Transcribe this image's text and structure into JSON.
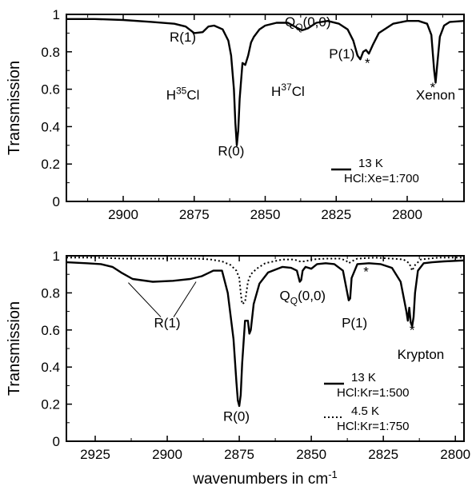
{
  "chart_data": [
    {
      "type": "line",
      "panel": "top",
      "ylabel": "Transmission",
      "xlabel": "",
      "xlim": [
        2920,
        2780
      ],
      "x_reversed": true,
      "ylim": [
        0,
        1
      ],
      "xticks": [
        2900,
        2875,
        2850,
        2825,
        2800
      ],
      "yticks": [
        0,
        0.2,
        0.4,
        0.6,
        0.8,
        1
      ],
      "grid": false,
      "legend_position": "bottom-right",
      "annotations": [
        {
          "text": "R(1)",
          "x": 2879,
          "y": 0.855
        },
        {
          "text": "Q",
          "sub": "Q",
          "suffix": "(0,0)",
          "x": 2835,
          "y": 0.935
        },
        {
          "text": "P(1)",
          "x": 2823,
          "y": 0.765
        },
        {
          "text": "H",
          "sup": "35",
          "suffix": "Cl",
          "x": 2879,
          "y": 0.545
        },
        {
          "text": "H",
          "sup": "37",
          "suffix": "Cl",
          "x": 2842,
          "y": 0.565
        },
        {
          "text": "R(0)",
          "x": 2862,
          "y": 0.245
        },
        {
          "text": "Xenon",
          "x": 2790,
          "y": 0.545
        },
        {
          "text": "*",
          "x": 2814,
          "y": 0.715
        },
        {
          "text": "*",
          "x": 2791,
          "y": 0.585
        }
      ],
      "series": [
        {
          "name": "13 K",
          "legend_sub": "HCl:Xe=1:700",
          "style": "solid",
          "x": [
            2920,
            2910,
            2900,
            2890,
            2882,
            2878,
            2875,
            2872,
            2870,
            2868,
            2865,
            2863,
            2862,
            2861,
            2860.5,
            2860,
            2859.5,
            2859,
            2858,
            2857,
            2856,
            2855,
            2854,
            2852,
            2850,
            2846,
            2842,
            2839,
            2837,
            2835,
            2832,
            2828,
            2824,
            2821,
            2819,
            2817.5,
            2816.5,
            2815.5,
            2814.5,
            2813.5,
            2812,
            2810,
            2805,
            2800,
            2796,
            2793,
            2791.5,
            2790.5,
            2790,
            2789.5,
            2788.5,
            2787,
            2785,
            2780
          ],
          "y": [
            0.975,
            0.975,
            0.97,
            0.96,
            0.95,
            0.935,
            0.9,
            0.905,
            0.935,
            0.94,
            0.92,
            0.86,
            0.78,
            0.6,
            0.42,
            0.3,
            0.38,
            0.55,
            0.74,
            0.73,
            0.78,
            0.85,
            0.88,
            0.92,
            0.94,
            0.955,
            0.955,
            0.93,
            0.915,
            0.925,
            0.955,
            0.965,
            0.95,
            0.92,
            0.86,
            0.78,
            0.76,
            0.8,
            0.81,
            0.79,
            0.84,
            0.9,
            0.95,
            0.965,
            0.965,
            0.95,
            0.89,
            0.7,
            0.635,
            0.72,
            0.88,
            0.94,
            0.96,
            0.965
          ]
        }
      ]
    },
    {
      "type": "line",
      "panel": "bottom",
      "ylabel": "Transmission",
      "xlabel": "wavenumbers in cm",
      "xlabel_sup": "-1",
      "xlim": [
        2935,
        2797
      ],
      "x_reversed": true,
      "ylim": [
        0,
        1
      ],
      "xticks": [
        2925,
        2900,
        2875,
        2850,
        2825,
        2800
      ],
      "yticks": [
        0,
        0.2,
        0.4,
        0.6,
        0.8,
        1
      ],
      "grid": false,
      "legend_position": "bottom-right",
      "annotations": [
        {
          "text": "R(1)",
          "x": 2900,
          "y": 0.615
        },
        {
          "text": "Q",
          "sub": "Q",
          "suffix": "(0,0)",
          "x": 2853,
          "y": 0.76
        },
        {
          "text": "P(1)",
          "x": 2835,
          "y": 0.615
        },
        {
          "text": "R(0)",
          "x": 2876,
          "y": 0.11
        },
        {
          "text": "Krypton",
          "x": 2812,
          "y": 0.445
        },
        {
          "text": "*",
          "x": 2831,
          "y": 0.89
        },
        {
          "text": "*",
          "x": 2815,
          "y": 0.575
        }
      ],
      "series": [
        {
          "name": "13 K",
          "legend_sub": "HCl:Kr=1:500",
          "style": "solid",
          "x": [
            2935,
            2928,
            2923,
            2919,
            2916,
            2912,
            2905,
            2898,
            2892,
            2888,
            2884,
            2881,
            2879,
            2877,
            2876,
            2875.5,
            2875,
            2874.5,
            2874,
            2873,
            2872,
            2871.5,
            2871,
            2870,
            2868,
            2865,
            2860,
            2857,
            2855,
            2854,
            2853.5,
            2853,
            2852,
            2850,
            2848,
            2845,
            2842,
            2839,
            2837.5,
            2837,
            2836.5,
            2836,
            2834,
            2830,
            2826,
            2822,
            2819,
            2817,
            2816.5,
            2816,
            2815.5,
            2815,
            2814.5,
            2814,
            2813,
            2811,
            2808,
            2804,
            2797
          ],
          "y": [
            0.965,
            0.96,
            0.955,
            0.94,
            0.91,
            0.875,
            0.86,
            0.865,
            0.875,
            0.89,
            0.92,
            0.92,
            0.8,
            0.55,
            0.32,
            0.22,
            0.19,
            0.25,
            0.42,
            0.65,
            0.65,
            0.58,
            0.6,
            0.74,
            0.85,
            0.91,
            0.94,
            0.935,
            0.92,
            0.86,
            0.87,
            0.92,
            0.94,
            0.93,
            0.955,
            0.96,
            0.955,
            0.92,
            0.8,
            0.76,
            0.77,
            0.88,
            0.955,
            0.96,
            0.955,
            0.935,
            0.86,
            0.7,
            0.65,
            0.72,
            0.64,
            0.62,
            0.67,
            0.8,
            0.92,
            0.96,
            0.965,
            0.97,
            0.975
          ]
        },
        {
          "name": "4.5 K",
          "legend_sub": "HCl:Kr=1:750",
          "style": "dotted",
          "x": [
            2935,
            2925,
            2915,
            2900,
            2890,
            2885,
            2881,
            2878,
            2876,
            2875,
            2874.5,
            2874,
            2873,
            2872,
            2871,
            2869,
            2866,
            2860,
            2856,
            2854,
            2852,
            2850,
            2845,
            2840,
            2838,
            2837,
            2836,
            2834,
            2828,
            2822,
            2818,
            2816,
            2815,
            2814,
            2812,
            2806,
            2797
          ],
          "y": [
            0.99,
            0.99,
            0.985,
            0.985,
            0.985,
            0.98,
            0.97,
            0.95,
            0.92,
            0.88,
            0.8,
            0.74,
            0.75,
            0.86,
            0.9,
            0.93,
            0.96,
            0.98,
            0.98,
            0.97,
            0.97,
            0.98,
            0.985,
            0.985,
            0.975,
            0.96,
            0.97,
            0.985,
            0.99,
            0.985,
            0.98,
            0.96,
            0.92,
            0.95,
            0.98,
            0.99,
            0.99
          ]
        }
      ]
    }
  ]
}
